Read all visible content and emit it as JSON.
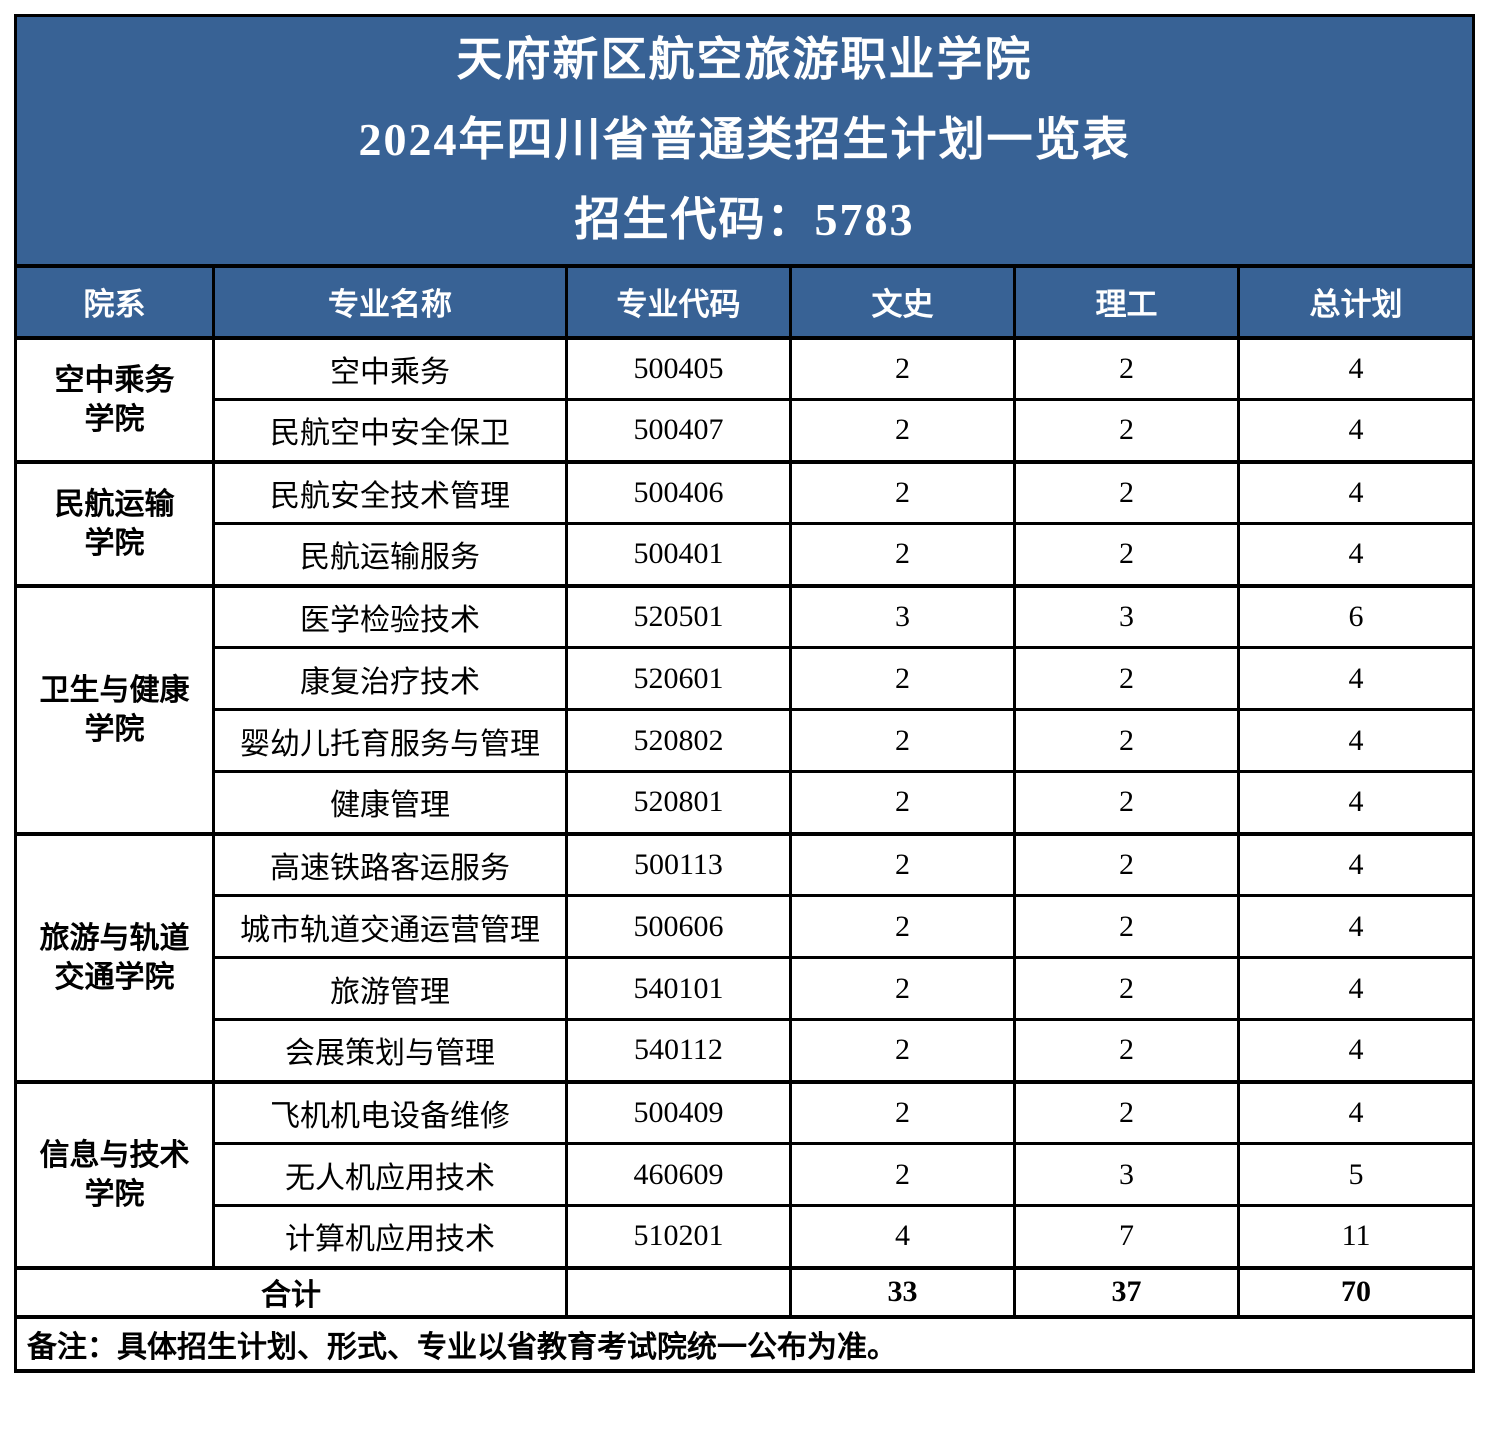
{
  "title": {
    "school": "天府新区航空旅游职业学院",
    "subtitle": "2024年四川省普通类招生计划一览表",
    "code_line": "招生代码：5783"
  },
  "columns": [
    "院系",
    "专业名称",
    "专业代码",
    "文史",
    "理工",
    "总计划"
  ],
  "groups": [
    {
      "department": "空中乘务\n学院",
      "majors": [
        {
          "name": "空中乘务",
          "code": "500405",
          "wenshi": "2",
          "ligong": "2",
          "total": "4"
        },
        {
          "name": "民航空中安全保卫",
          "code": "500407",
          "wenshi": "2",
          "ligong": "2",
          "total": "4"
        }
      ]
    },
    {
      "department": "民航运输\n学院",
      "majors": [
        {
          "name": "民航安全技术管理",
          "code": "500406",
          "wenshi": "2",
          "ligong": "2",
          "total": "4"
        },
        {
          "name": "民航运输服务",
          "code": "500401",
          "wenshi": "2",
          "ligong": "2",
          "total": "4"
        }
      ]
    },
    {
      "department": "卫生与健康\n学院",
      "majors": [
        {
          "name": "医学检验技术",
          "code": "520501",
          "wenshi": "3",
          "ligong": "3",
          "total": "6"
        },
        {
          "name": "康复治疗技术",
          "code": "520601",
          "wenshi": "2",
          "ligong": "2",
          "total": "4"
        },
        {
          "name": "婴幼儿托育服务与管理",
          "code": "520802",
          "wenshi": "2",
          "ligong": "2",
          "total": "4"
        },
        {
          "name": "健康管理",
          "code": "520801",
          "wenshi": "2",
          "ligong": "2",
          "total": "4"
        }
      ]
    },
    {
      "department": "旅游与轨道\n交通学院",
      "majors": [
        {
          "name": "高速铁路客运服务",
          "code": "500113",
          "wenshi": "2",
          "ligong": "2",
          "total": "4"
        },
        {
          "name": "城市轨道交通运营管理",
          "code": "500606",
          "wenshi": "2",
          "ligong": "2",
          "total": "4"
        },
        {
          "name": "旅游管理",
          "code": "540101",
          "wenshi": "2",
          "ligong": "2",
          "total": "4"
        },
        {
          "name": "会展策划与管理",
          "code": "540112",
          "wenshi": "2",
          "ligong": "2",
          "total": "4"
        }
      ]
    },
    {
      "department": "信息与技术\n学院",
      "majors": [
        {
          "name": "飞机机电设备维修",
          "code": "500409",
          "wenshi": "2",
          "ligong": "2",
          "total": "4"
        },
        {
          "name": "无人机应用技术",
          "code": "460609",
          "wenshi": "2",
          "ligong": "3",
          "total": "5"
        },
        {
          "name": "计算机应用技术",
          "code": "510201",
          "wenshi": "4",
          "ligong": "7",
          "total": "11"
        }
      ]
    }
  ],
  "summary": {
    "label": "合计",
    "wenshi": "33",
    "ligong": "37",
    "total": "70"
  },
  "note": "备注：具体招生计划、形式、专业以省教育考试院统一公布为准。",
  "colors": {
    "header_bg": "#386295",
    "header_text": "#FFFFFF",
    "body_text": "#000000",
    "border": "#000000",
    "light_border": "#C8C8C8"
  }
}
